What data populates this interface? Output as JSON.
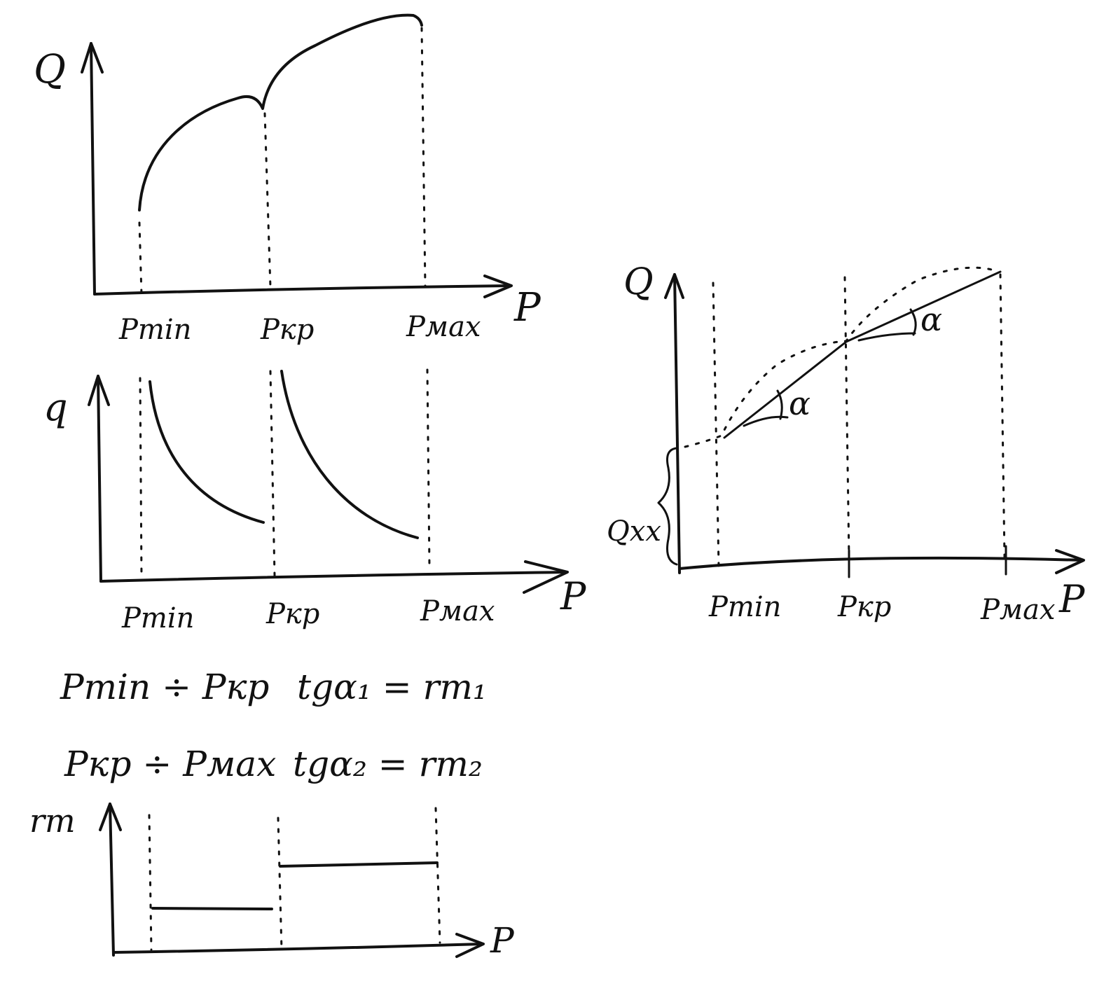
{
  "diagram_a": {
    "y_label": "Q",
    "x_label": "P",
    "ticks": [
      "Pmin",
      "Pкр",
      "Pмах"
    ]
  },
  "diagram_b": {
    "y_label": "q",
    "x_label": "P",
    "ticks": [
      "Pmin",
      "Pкр",
      "Pмах"
    ]
  },
  "formulas": [
    {
      "range": "Pmin ÷ Pкр",
      "relation": "tgα₁ = rт₁"
    },
    {
      "range": "Pкр ÷ Pмах",
      "relation": "tgα₂ = rт₂"
    }
  ],
  "diagram_c": {
    "y_label": "rт",
    "x_label": "P"
  },
  "diagram_d": {
    "y_label": "Q",
    "x_label": "P",
    "ticks": [
      "Pmin",
      "Pкр",
      "Pмах"
    ],
    "angle_label_1": "α",
    "angle_label_2": "α",
    "brace_label": "Qхх"
  },
  "colors": {
    "ink": "#111111",
    "paper": "#ffffff"
  }
}
